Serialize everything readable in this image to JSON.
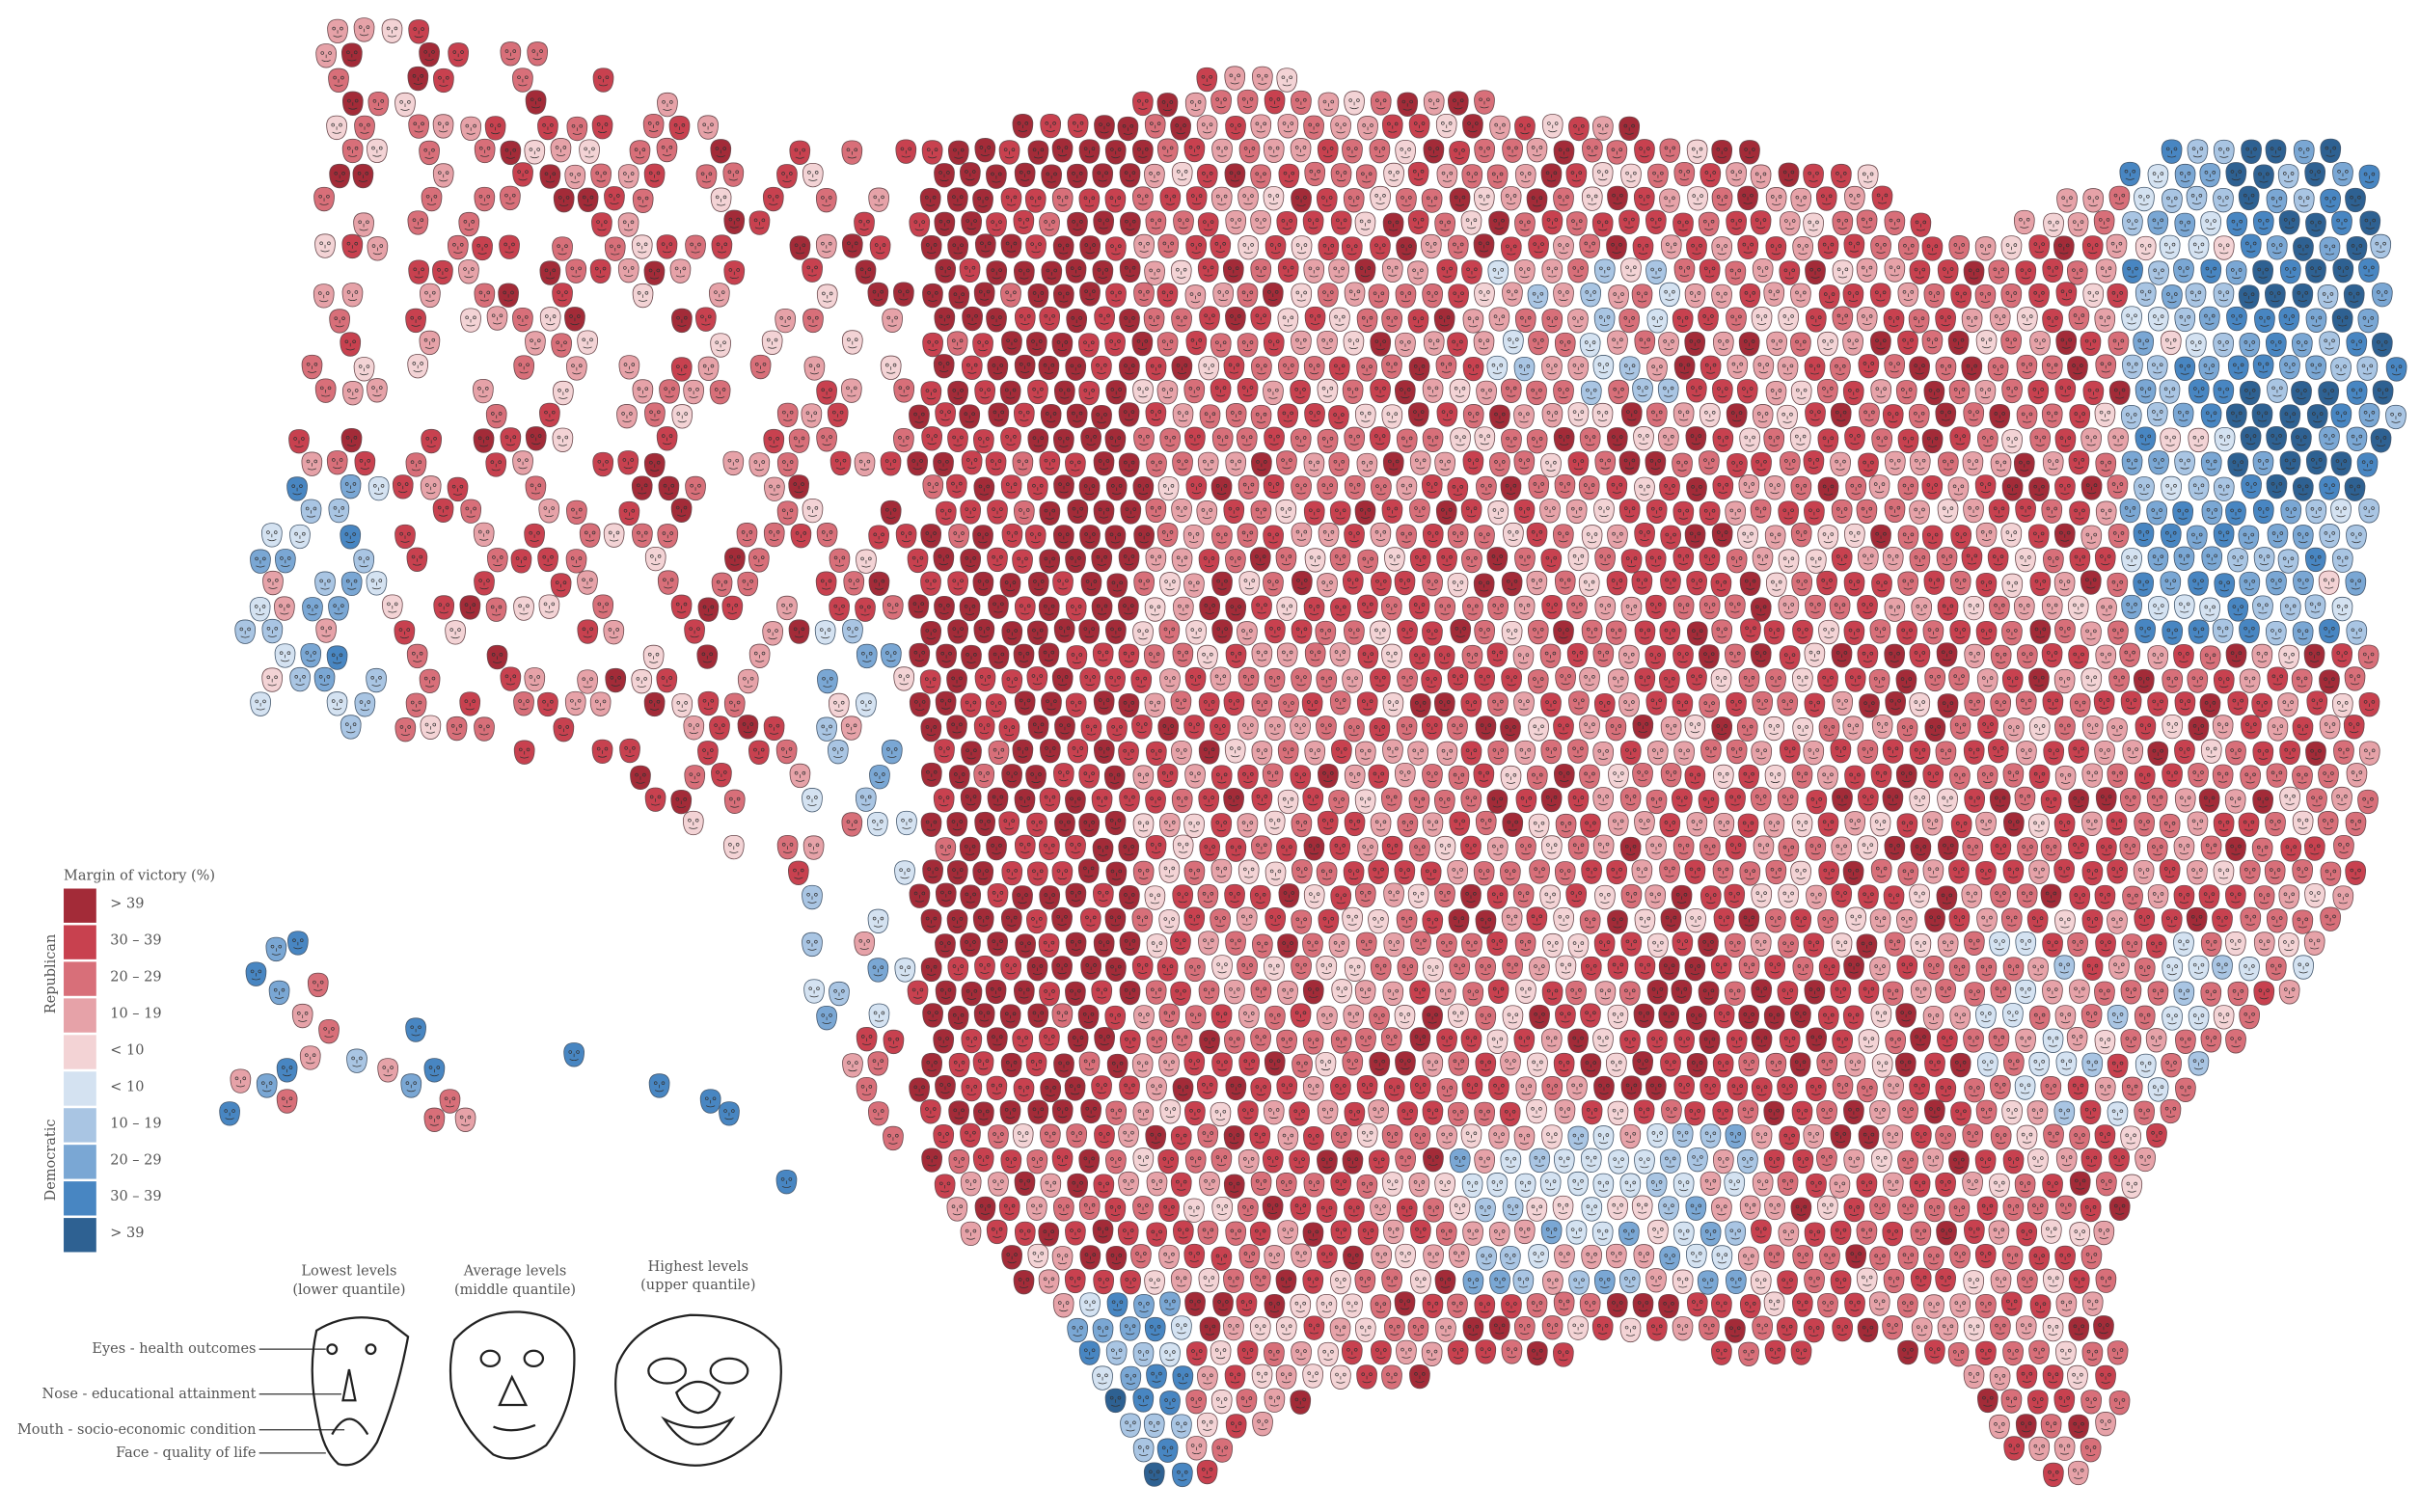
{
  "legend": {
    "title": "Margin of victory (%)",
    "republican_label": "Republican",
    "democratic_label": "Democratic",
    "items": [
      {
        "label": "> 39",
        "color": "#a32b38"
      },
      {
        "label": "30 – 39",
        "color": "#c8414f"
      },
      {
        "label": "20 – 29",
        "color": "#d86f79"
      },
      {
        "label": "10 – 19",
        "color": "#e6a2a8"
      },
      {
        "label": "< 10",
        "color": "#f3d3d5"
      },
      {
        "label": "< 10",
        "color": "#d4e2f1"
      },
      {
        "label": "10 – 19",
        "color": "#a9c5e3"
      },
      {
        "label": "20 – 29",
        "color": "#7aa7d4"
      },
      {
        "label": "30 – 39",
        "color": "#4886c2"
      },
      {
        "label": "> 39",
        "color": "#2e6192"
      }
    ]
  },
  "key": {
    "columns": [
      {
        "title": "Lowest levels",
        "subtitle": "(lower quantile)"
      },
      {
        "title": "Average levels",
        "subtitle": "(middle quantile)"
      },
      {
        "title": "Highest levels",
        "subtitle": "(upper quantile)"
      }
    ],
    "features": [
      "Eyes - health outcomes",
      "Nose - educational attainment",
      "Mouth - socio-economic condition",
      "Face - quality of life"
    ]
  }
}
